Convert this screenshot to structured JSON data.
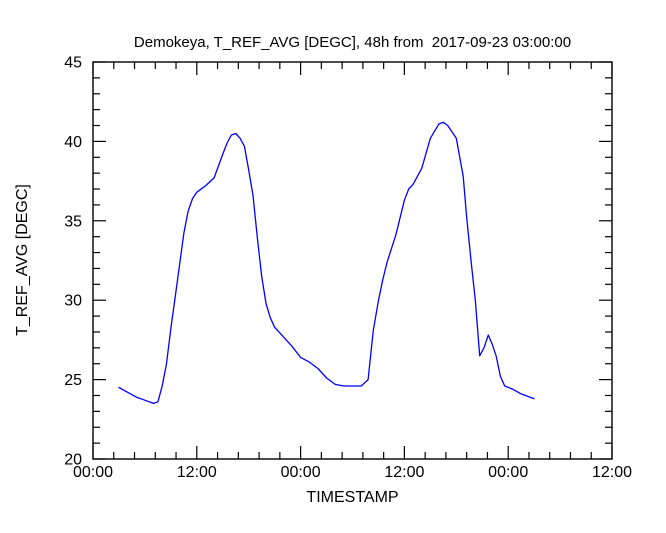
{
  "chart_data": {
    "type": "line",
    "title": "Demokeya, T_REF_AVG [DEGC], 48h from  2017-09-23 03:00:00",
    "xlabel": "TIMESTAMP",
    "ylabel": "T_REF_AVG [DEGC]",
    "grid": false,
    "legend": "none",
    "x_axis": {
      "range_hours": [
        0,
        60
      ],
      "major_tick_hours": [
        0,
        12,
        24,
        36,
        48,
        60
      ],
      "major_tick_labels": [
        "00:00",
        "12:00",
        "00:00",
        "12:00",
        "00:00",
        "12:00"
      ],
      "minor_ticks_between_majors": 4
    },
    "y_axis": {
      "range": [
        20,
        45
      ],
      "major_ticks": [
        20,
        25,
        30,
        35,
        40,
        45
      ],
      "major_tick_labels": [
        "20",
        "25",
        "30",
        "35",
        "40",
        "45"
      ],
      "minor_tick_step": 1
    },
    "series": [
      {
        "name": "T_REF_AVG",
        "color": "#0000ff",
        "points": [
          [
            3,
            24.5
          ],
          [
            4,
            24.2
          ],
          [
            5,
            23.9
          ],
          [
            6,
            23.7
          ],
          [
            7,
            23.5
          ],
          [
            7.5,
            23.6
          ],
          [
            8,
            24.6
          ],
          [
            8.5,
            26.0
          ],
          [
            9,
            28.2
          ],
          [
            9.5,
            30.2
          ],
          [
            10,
            32.2
          ],
          [
            10.5,
            34.2
          ],
          [
            11,
            35.6
          ],
          [
            11.5,
            36.4
          ],
          [
            12,
            36.8
          ],
          [
            13,
            37.2
          ],
          [
            14,
            37.7
          ],
          [
            15,
            39.2
          ],
          [
            15.5,
            39.9
          ],
          [
            16,
            40.4
          ],
          [
            16.5,
            40.5
          ],
          [
            17,
            40.2
          ],
          [
            17.5,
            39.7
          ],
          [
            18,
            38.2
          ],
          [
            18.5,
            36.6
          ],
          [
            19,
            33.9
          ],
          [
            19.5,
            31.5
          ],
          [
            20,
            29.8
          ],
          [
            20.5,
            28.9
          ],
          [
            21,
            28.3
          ],
          [
            22,
            27.7
          ],
          [
            23,
            27.1
          ],
          [
            24,
            26.4
          ],
          [
            25,
            26.1
          ],
          [
            26,
            25.7
          ],
          [
            27,
            25.1
          ],
          [
            28,
            24.7
          ],
          [
            29,
            24.6
          ],
          [
            30,
            24.6
          ],
          [
            31,
            24.6
          ],
          [
            31.8,
            25.0
          ],
          [
            32.4,
            28.1
          ],
          [
            33,
            30.0
          ],
          [
            33.5,
            31.3
          ],
          [
            34,
            32.4
          ],
          [
            35,
            34.1
          ],
          [
            36,
            36.3
          ],
          [
            36.5,
            37.0
          ],
          [
            37,
            37.3
          ],
          [
            38,
            38.3
          ],
          [
            39,
            40.2
          ],
          [
            40,
            41.1
          ],
          [
            40.5,
            41.2
          ],
          [
            41,
            41.0
          ],
          [
            42,
            40.2
          ],
          [
            42.8,
            37.8
          ],
          [
            43.2,
            35.2
          ],
          [
            43.7,
            32.5
          ],
          [
            44.2,
            30.0
          ],
          [
            44.7,
            26.5
          ],
          [
            45.2,
            27.0
          ],
          [
            45.7,
            27.8
          ],
          [
            46.1,
            27.3
          ],
          [
            46.6,
            26.5
          ],
          [
            47.1,
            25.2
          ],
          [
            47.6,
            24.6
          ],
          [
            48.5,
            24.4
          ],
          [
            49.5,
            24.1
          ],
          [
            50.5,
            23.9
          ],
          [
            51,
            23.8
          ]
        ]
      }
    ]
  }
}
